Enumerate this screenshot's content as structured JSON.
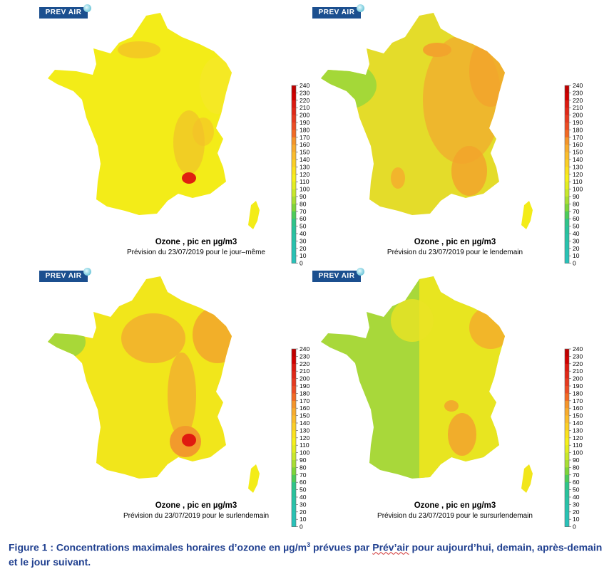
{
  "logo_text": "PREV AIR",
  "panels": [
    {
      "title": "Ozone , pic en µg/m3",
      "subtitle": "Prévision du 23/07/2019 pour le jour–même",
      "base": "#f3ec18"
    },
    {
      "title": "Ozone , pic en µg/m3",
      "subtitle": "Prévision du 23/07/2019 pour le lendemain",
      "base": "#e4dc2a"
    },
    {
      "title": "Ozone , pic en µg/m3",
      "subtitle": "Prévision du 23/07/2019 pour le surlendemain",
      "base": "#f1e61b"
    },
    {
      "title": "Ozone , pic en µg/m3",
      "subtitle": "Prévision du 23/07/2019 pour le sursurlendemain",
      "base": "#a8d83a"
    }
  ],
  "scale": {
    "ticks": [
      "240",
      "230",
      "220",
      "210",
      "200",
      "190",
      "180",
      "170",
      "160",
      "150",
      "140",
      "130",
      "120",
      "110",
      "100",
      "90",
      "80",
      "70",
      "60",
      "50",
      "40",
      "30",
      "20",
      "10",
      "0"
    ],
    "colors": [
      "#c00000",
      "#d00000",
      "#dc1a10",
      "#e02818",
      "#e63a20",
      "#ec4c24",
      "#f26a24",
      "#f5952a",
      "#f8ac2e",
      "#fbbd2c",
      "#fbcf26",
      "#fbe21e",
      "#f6f01c",
      "#e2ee22",
      "#c8e82c",
      "#a8de34",
      "#7dd53a",
      "#4ccc5a",
      "#2fc48a",
      "#28c29c",
      "#28c2a6",
      "#28c2ae",
      "#28c2b4",
      "#28c2ba"
    ]
  },
  "caption": {
    "prefix": "Figure 1 : Concentrations maximales horaires d’ozone en µg/m",
    "sup": "3",
    "middle": " prévues par ",
    "underlined": "Prév’air",
    "suffix": " pour aujourd’hui, demain, après-demain et le jour suivant."
  }
}
